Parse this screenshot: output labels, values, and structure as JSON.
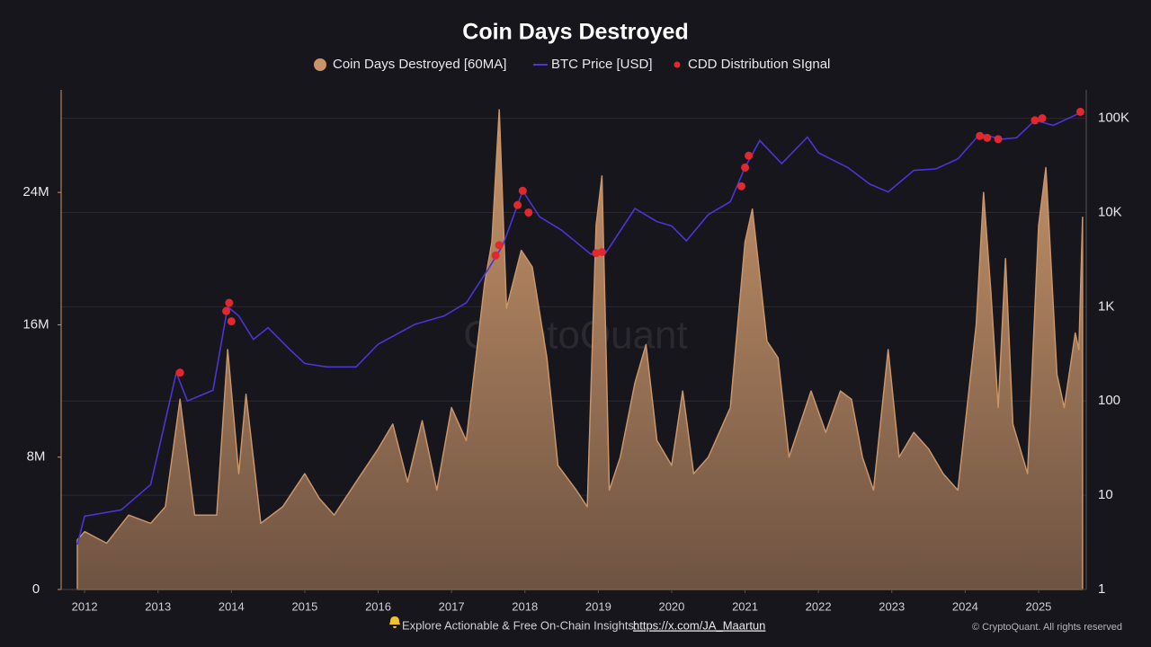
{
  "chart_data": {
    "type": "area",
    "title": "Coin Days Destroyed",
    "watermark": "CryptoQuant",
    "xlim": [
      2011.68,
      2025.65
    ],
    "xticks": [
      2012,
      2013,
      2014,
      2015,
      2016,
      2017,
      2018,
      2019,
      2020,
      2021,
      2022,
      2023,
      2024,
      2025
    ],
    "ylim": [
      0,
      30200000
    ],
    "yticks": [
      0,
      {
        "value": 8000000,
        "label": "8M"
      },
      {
        "value": 16000000,
        "label": "16M"
      },
      {
        "value": 24000000,
        "label": "24M"
      }
    ],
    "y2lim": [
      1,
      200000
    ],
    "y2scale": "log",
    "y2ticks": [
      1,
      10,
      100,
      {
        "value": 1000,
        "label": "1K"
      },
      {
        "value": 10000,
        "label": "10K"
      },
      {
        "value": 100000,
        "label": "100K"
      }
    ],
    "grid": true,
    "series": [
      {
        "name": "Coin Days Destroyed [60MA]",
        "type": "area",
        "color": "#c8956a",
        "x": [
          2011.9,
          2012.0,
          2012.3,
          2012.6,
          2012.9,
          2013.1,
          2013.3,
          2013.5,
          2013.8,
          2013.95,
          2014.1,
          2014.2,
          2014.4,
          2014.7,
          2015.0,
          2015.2,
          2015.4,
          2015.7,
          2016.0,
          2016.2,
          2016.4,
          2016.6,
          2016.8,
          2017.0,
          2017.2,
          2017.45,
          2017.55,
          2017.65,
          2017.75,
          2017.95,
          2018.1,
          2018.3,
          2018.45,
          2018.7,
          2018.85,
          2018.97,
          2019.05,
          2019.15,
          2019.3,
          2019.5,
          2019.65,
          2019.8,
          2020.0,
          2020.15,
          2020.3,
          2020.5,
          2020.8,
          2021.0,
          2021.1,
          2021.3,
          2021.45,
          2021.6,
          2021.75,
          2021.9,
          2022.1,
          2022.3,
          2022.45,
          2022.6,
          2022.75,
          2022.95,
          2023.1,
          2023.3,
          2023.5,
          2023.7,
          2023.9,
          2024.0,
          2024.15,
          2024.25,
          2024.35,
          2024.45,
          2024.55,
          2024.65,
          2024.85,
          2025.0,
          2025.1,
          2025.25,
          2025.35,
          2025.5,
          2025.55,
          2025.6
        ],
        "values": [
          3000000,
          3500000,
          2800000,
          4500000,
          4000000,
          5000000,
          11500000,
          4500000,
          4500000,
          14500000,
          7000000,
          11800000,
          4000000,
          5000000,
          7000000,
          5500000,
          4500000,
          6500000,
          8500000,
          10000000,
          6500000,
          10200000,
          6000000,
          11000000,
          9000000,
          18500000,
          21000000,
          29000000,
          17000000,
          20500000,
          19500000,
          14000000,
          7500000,
          6000000,
          5000000,
          22000000,
          25000000,
          6000000,
          8000000,
          12500000,
          14800000,
          9000000,
          7500000,
          12000000,
          7000000,
          8000000,
          11000000,
          21000000,
          23000000,
          15000000,
          14000000,
          8000000,
          10000000,
          12000000,
          9500000,
          12000000,
          11500000,
          8000000,
          6000000,
          14500000,
          8000000,
          9500000,
          8500000,
          7000000,
          6000000,
          10000000,
          16000000,
          24000000,
          18000000,
          11000000,
          20000000,
          10000000,
          7000000,
          22000000,
          25500000,
          13000000,
          11000000,
          15500000,
          14500000,
          22500000
        ]
      },
      {
        "name": "BTC Price [USD]",
        "type": "line",
        "axis": "y2",
        "color": "#4a35d6",
        "x": [
          2011.9,
          2012.0,
          2012.5,
          2012.9,
          2013.25,
          2013.4,
          2013.75,
          2013.95,
          2014.1,
          2014.3,
          2014.5,
          2014.8,
          2015.0,
          2015.3,
          2015.7,
          2016.0,
          2016.5,
          2016.9,
          2017.2,
          2017.5,
          2017.7,
          2017.97,
          2018.2,
          2018.5,
          2018.9,
          2019.1,
          2019.5,
          2019.8,
          2020.0,
          2020.2,
          2020.5,
          2020.8,
          2021.0,
          2021.2,
          2021.5,
          2021.85,
          2022.0,
          2022.4,
          2022.7,
          2022.95,
          2023.3,
          2023.6,
          2023.9,
          2024.2,
          2024.5,
          2024.7,
          2024.95,
          2025.2,
          2025.5,
          2025.6
        ],
        "values": [
          3,
          6,
          7,
          13,
          200,
          100,
          130,
          1000,
          800,
          450,
          600,
          350,
          250,
          230,
          230,
          400,
          650,
          800,
          1100,
          2500,
          4500,
          17000,
          9000,
          6500,
          3600,
          3700,
          11000,
          8000,
          7200,
          5000,
          9500,
          13000,
          30000,
          58000,
          33000,
          63000,
          43000,
          30000,
          20000,
          16500,
          28000,
          29000,
          37000,
          68000,
          60000,
          62000,
          95000,
          84000,
          108000,
          118000
        ]
      },
      {
        "name": "CDD Distribution SIgnal",
        "type": "scatter",
        "axis": "y2",
        "color": "#e0282e",
        "x": [
          2013.3,
          2013.93,
          2013.97,
          2014.0,
          2017.6,
          2017.65,
          2017.9,
          2017.97,
          2018.05,
          2018.97,
          2019.05,
          2020.95,
          2021.0,
          2021.05,
          2024.2,
          2024.3,
          2024.45,
          2024.95,
          2025.05,
          2025.57
        ],
        "values": [
          200,
          900,
          1100,
          700,
          3500,
          4500,
          12000,
          17000,
          10000,
          3700,
          3800,
          19000,
          30000,
          40000,
          65000,
          62000,
          60000,
          95000,
          100000,
          117000
        ]
      }
    ]
  },
  "footer": {
    "text": "Explore Actionable & Free On-Chain Insights:",
    "link": "https://x.com/JA_Maartun",
    "copyright": "© CryptoQuant. All rights reserved"
  }
}
